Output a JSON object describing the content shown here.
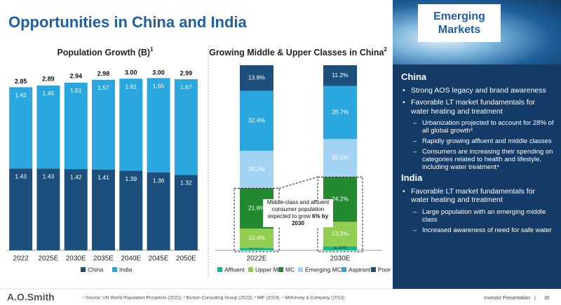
{
  "header": {
    "title": "Opportunities in China and India"
  },
  "chart_data": [
    {
      "type": "bar",
      "stacked": true,
      "title": "Population Growth (B)",
      "title_sup": "1",
      "categories": [
        "2022",
        "2025E",
        "2030E",
        "2035E",
        "2040E",
        "2045E",
        "2050E"
      ],
      "series": [
        {
          "name": "China",
          "color": "#1d4f7c",
          "values": [
            1.43,
            1.43,
            1.42,
            1.41,
            1.39,
            1.36,
            1.32
          ]
        },
        {
          "name": "India",
          "color": "#2aa7df",
          "values": [
            1.42,
            1.45,
            1.51,
            1.57,
            1.61,
            1.65,
            1.67
          ]
        }
      ],
      "totals": [
        2.85,
        2.89,
        2.94,
        2.98,
        3.0,
        3.0,
        2.99
      ],
      "total_labels": [
        "2.85",
        "2.89",
        "2.94",
        "2.98",
        "3.00",
        "3.00",
        "2.99"
      ],
      "ylim": [
        0,
        3.1
      ],
      "legend": "bottom"
    },
    {
      "type": "bar",
      "stacked": true,
      "title": "Growing Middle & Upper Classes in China",
      "title_sup": "2",
      "categories": [
        "2022E",
        "2030E"
      ],
      "series": [
        {
          "name": "Affluent",
          "color": "#1db38c",
          "values": [
            1.3,
            2.1
          ],
          "value_labels": [
            "1.3%",
            "2.1%"
          ]
        },
        {
          "name": "Upper MC",
          "color": "#92cf50",
          "values": [
            10.4,
            13.3
          ],
          "value_labels": [
            "10.4%",
            "13.3%"
          ]
        },
        {
          "name": "MC",
          "color": "#23892f",
          "values": [
            21.8,
            24.2
          ],
          "value_labels": [
            "21.8%",
            "24.2%"
          ]
        },
        {
          "name": "Emerging MC",
          "color": "#a3d3f3",
          "values": [
            20.3,
            20.5
          ],
          "value_labels": [
            "20.3%",
            "20.5%"
          ]
        },
        {
          "name": "Aspirant",
          "color": "#2aa7df",
          "values": [
            32.4,
            28.7
          ],
          "value_labels": [
            "32.4%",
            "28.7%"
          ]
        },
        {
          "name": "Poor",
          "color": "#1d4f7c",
          "values": [
            13.8,
            11.2
          ],
          "value_labels": [
            "13.8%",
            "11.2%"
          ]
        }
      ],
      "ylim": [
        0,
        100
      ],
      "legend": "bottom",
      "annotation": {
        "text": "Middle-class and affluent consumer population expected to grow",
        "bold": "6% by 2030"
      }
    }
  ],
  "panel": {
    "badge": "Emerging Markets",
    "sections": [
      {
        "heading": "China",
        "items": [
          {
            "text": "Strong AOS legacy and brand awareness",
            "sub": []
          },
          {
            "text": "Favorable LT market fundamentals for water heating and treatment",
            "sub": [
              "Urbanization projected to account for 28% of all global growth³",
              "Rapidly growing affluent and middle classes",
              "Consumers are increasing their spending on categories related to health and lifestyle, including water treatment⁴"
            ]
          }
        ]
      },
      {
        "heading": "India",
        "items": [
          {
            "text": "Favorable LT market fundamentals for water heating and treatment",
            "sub": [
              "Large population with an emerging middle class",
              "Increased awareness of need for safe water"
            ]
          }
        ]
      }
    ]
  },
  "footer": {
    "logo": "A.O.Smith",
    "footnote": "¹ Source: UN World Population Prospects (2022); ² Boston Consulting Group (2023); ³ IMF (2019). ⁴ McKinsey & Company (2013).",
    "presentation": "Investor Presentation",
    "page": 30
  }
}
